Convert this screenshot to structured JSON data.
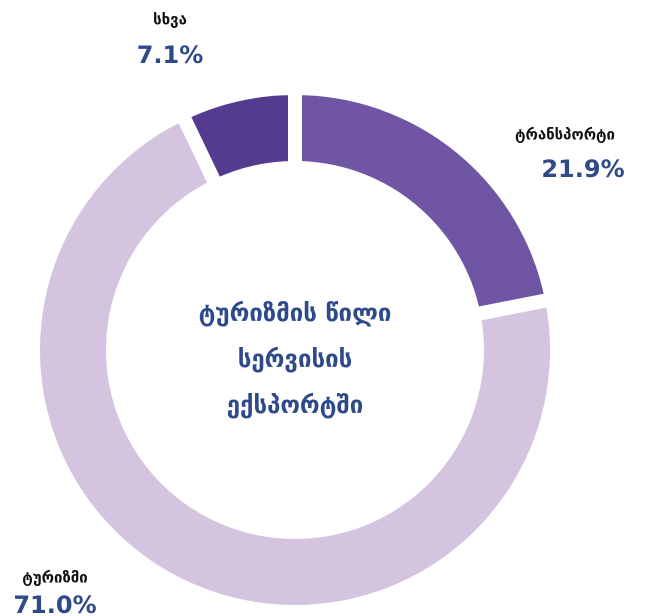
{
  "chart_data": {
    "type": "donut",
    "title": "ტურიზმის წილი სერვისის ექსპორტში",
    "categories": [
      "ტრანსპორტი",
      "ტურიზმი",
      "სხვა"
    ],
    "values": [
      21.9,
      71.0,
      7.1
    ],
    "value_labels": [
      "21.9%",
      "71.0%",
      "7.1%"
    ],
    "colors": [
      "#6f55a3",
      "#d4c4e0",
      "#553b8f"
    ]
  }
}
